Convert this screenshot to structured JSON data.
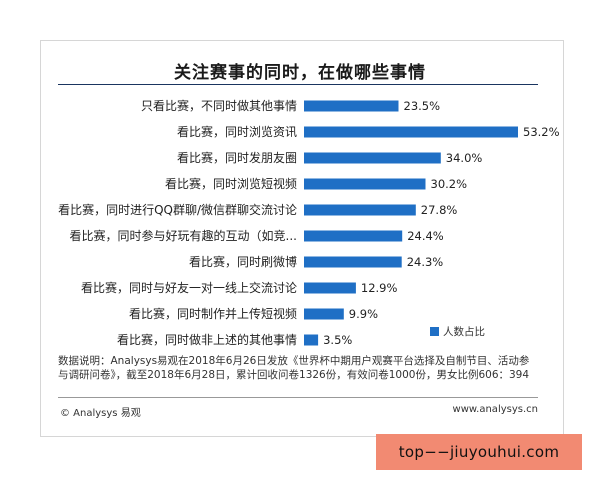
{
  "title": "关注赛事的同时，在做哪些事情",
  "chart_data": {
    "type": "bar",
    "orientation": "horizontal",
    "categories": [
      "只看比赛，不同时做其他事情",
      "看比赛，同时浏览资讯",
      "看比赛，同时发朋友圈",
      "看比赛，同时浏览短视频",
      "看比赛，同时进行QQ群聊/微信群聊交流讨论",
      "看比赛，同时参与好玩有趣的互动（如竞...",
      "看比赛，同时刷微博",
      "看比赛，同时与好友一对一线上交流讨论",
      "看比赛，同时制作并上传短视频",
      "看比赛，同时做非上述的其他事情"
    ],
    "series": [
      {
        "name": "人数占比",
        "values": [
          23.5,
          53.2,
          34.0,
          30.2,
          27.8,
          24.4,
          24.3,
          12.9,
          9.9,
          3.5
        ],
        "labels": [
          "23.5%",
          "53.2%",
          "34.0%",
          "30.2%",
          "27.8%",
          "24.4%",
          "24.3%",
          "12.9%",
          "9.9%",
          "3.5%"
        ]
      }
    ],
    "xlim": [
      0,
      53.2
    ],
    "color": "#1f6fc5",
    "legend_position": "bottom-right",
    "grid": false
  },
  "note": "数据说明：Analysys易观在2018年6月26日发放《世界杯中期用户观赛平台选择及自制节目、活动参与调研问卷》，截至2018年6月28日，累计回收问卷1326份，有效问卷1000份，男女比例606：394",
  "footer": {
    "brand": "© Analysys 易观",
    "url": "www.analysys.cn"
  },
  "watermark": "top−−jiuyouhui.com"
}
